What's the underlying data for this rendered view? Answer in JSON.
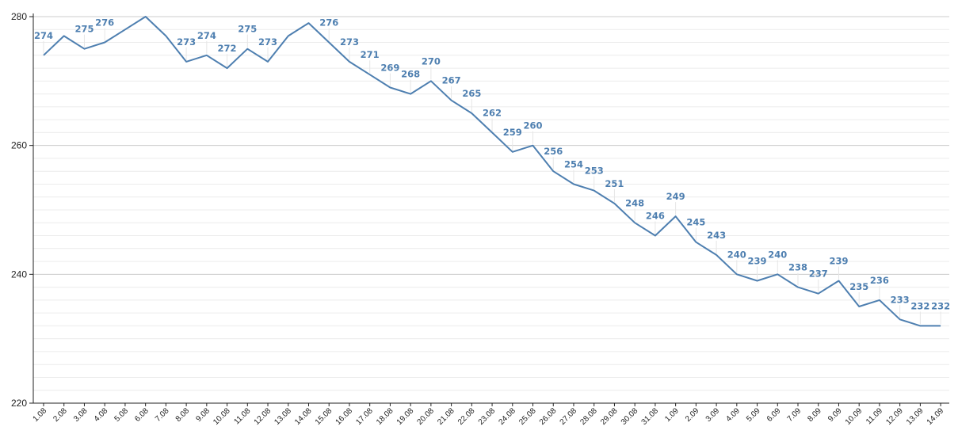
{
  "chart_data": {
    "type": "line",
    "title": "",
    "xlabel": "",
    "ylabel": "",
    "ylim": [
      220,
      280
    ],
    "yticks": [
      220,
      240,
      260,
      280
    ],
    "grid": true,
    "legend": "none",
    "colors": {
      "line": "#4e7fb0",
      "labels": "#4e7fb0",
      "major_grid": "#cccccc",
      "minor_grid": "#ececec",
      "axis": "#222222"
    },
    "categories": [
      "1.08",
      "2.08",
      "3.08",
      "4.08",
      "5.08",
      "6.08",
      "7.08",
      "8.08",
      "9.08",
      "10.08",
      "11.08",
      "12.08",
      "13.08",
      "14.08",
      "15.08",
      "16.08",
      "17.08",
      "18.08",
      "19.08",
      "20.08",
      "21.08",
      "22.08",
      "23.08",
      "24.08",
      "25.08",
      "26.08",
      "27.08",
      "28.08",
      "29.08",
      "30.08",
      "31.08",
      "1.09",
      "2.09",
      "3.09",
      "4.09",
      "5.09",
      "6.09",
      "7.09",
      "8.09",
      "9.09",
      "10.09",
      "11.09",
      "12.09",
      "13.09",
      "14.09"
    ],
    "values": [
      274,
      277,
      275,
      276,
      278,
      280,
      277,
      273,
      274,
      272,
      275,
      273,
      277,
      279,
      276,
      273,
      271,
      269,
      268,
      270,
      267,
      265,
      262,
      259,
      260,
      256,
      254,
      253,
      251,
      248,
      246,
      249,
      245,
      243,
      240,
      239,
      240,
      238,
      237,
      239,
      235,
      236,
      233,
      232,
      232
    ],
    "data_labels": [
      {
        "index": 0,
        "text": "274"
      },
      {
        "index": 2,
        "text": "275"
      },
      {
        "index": 3,
        "text": "276"
      },
      {
        "index": 7,
        "text": "273"
      },
      {
        "index": 8,
        "text": "274"
      },
      {
        "index": 9,
        "text": "272"
      },
      {
        "index": 10,
        "text": "275"
      },
      {
        "index": 11,
        "text": "273"
      },
      {
        "index": 14,
        "text": "276"
      },
      {
        "index": 15,
        "text": "273"
      },
      {
        "index": 16,
        "text": "271"
      },
      {
        "index": 17,
        "text": "269"
      },
      {
        "index": 18,
        "text": "268"
      },
      {
        "index": 19,
        "text": "270"
      },
      {
        "index": 20,
        "text": "267"
      },
      {
        "index": 21,
        "text": "265"
      },
      {
        "index": 22,
        "text": "262"
      },
      {
        "index": 23,
        "text": "259"
      },
      {
        "index": 24,
        "text": "260"
      },
      {
        "index": 25,
        "text": "256"
      },
      {
        "index": 26,
        "text": "254"
      },
      {
        "index": 27,
        "text": "253"
      },
      {
        "index": 28,
        "text": "251"
      },
      {
        "index": 29,
        "text": "248"
      },
      {
        "index": 30,
        "text": "246"
      },
      {
        "index": 31,
        "text": "249"
      },
      {
        "index": 32,
        "text": "245"
      },
      {
        "index": 33,
        "text": "243"
      },
      {
        "index": 34,
        "text": "240"
      },
      {
        "index": 35,
        "text": "239"
      },
      {
        "index": 36,
        "text": "240"
      },
      {
        "index": 37,
        "text": "238"
      },
      {
        "index": 38,
        "text": "237"
      },
      {
        "index": 39,
        "text": "239"
      },
      {
        "index": 40,
        "text": "235"
      },
      {
        "index": 41,
        "text": "236"
      },
      {
        "index": 42,
        "text": "233"
      },
      {
        "index": 43,
        "text": "232"
      },
      {
        "index": 44,
        "text": "232"
      }
    ]
  }
}
